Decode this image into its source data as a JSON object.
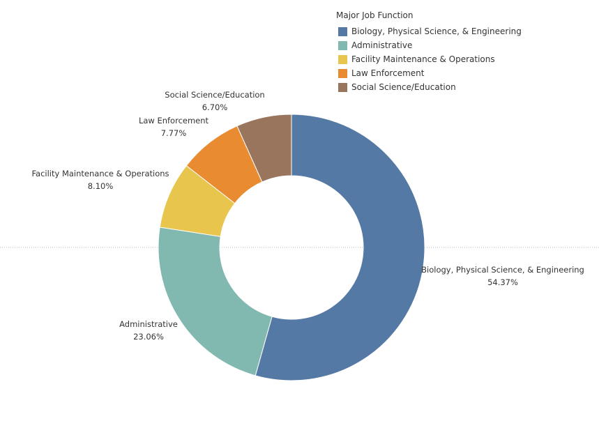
{
  "chart_data": {
    "type": "pie",
    "legend": {
      "title": "Major Job Function",
      "placement": "top-right"
    },
    "slices": [
      {
        "label": "Biology, Physical Science, & Engineering",
        "value": 54.37,
        "value_label": "54.37%",
        "color": "#5579a5"
      },
      {
        "label": "Administrative",
        "value": 23.06,
        "value_label": "23.06%",
        "color": "#81b8b0"
      },
      {
        "label": "Facility Maintenance & Operations",
        "value": 8.1,
        "value_label": "8.10%",
        "color": "#e8c54c"
      },
      {
        "label": "Law Enforcement",
        "value": 7.77,
        "value_label": "7.77%",
        "color": "#e98b30"
      },
      {
        "label": "Social Science/Education",
        "value": 6.7,
        "value_label": "6.70%",
        "color": "#9a755d"
      }
    ],
    "donut": true,
    "start_angle_deg": 0,
    "direction": "clockwise"
  }
}
